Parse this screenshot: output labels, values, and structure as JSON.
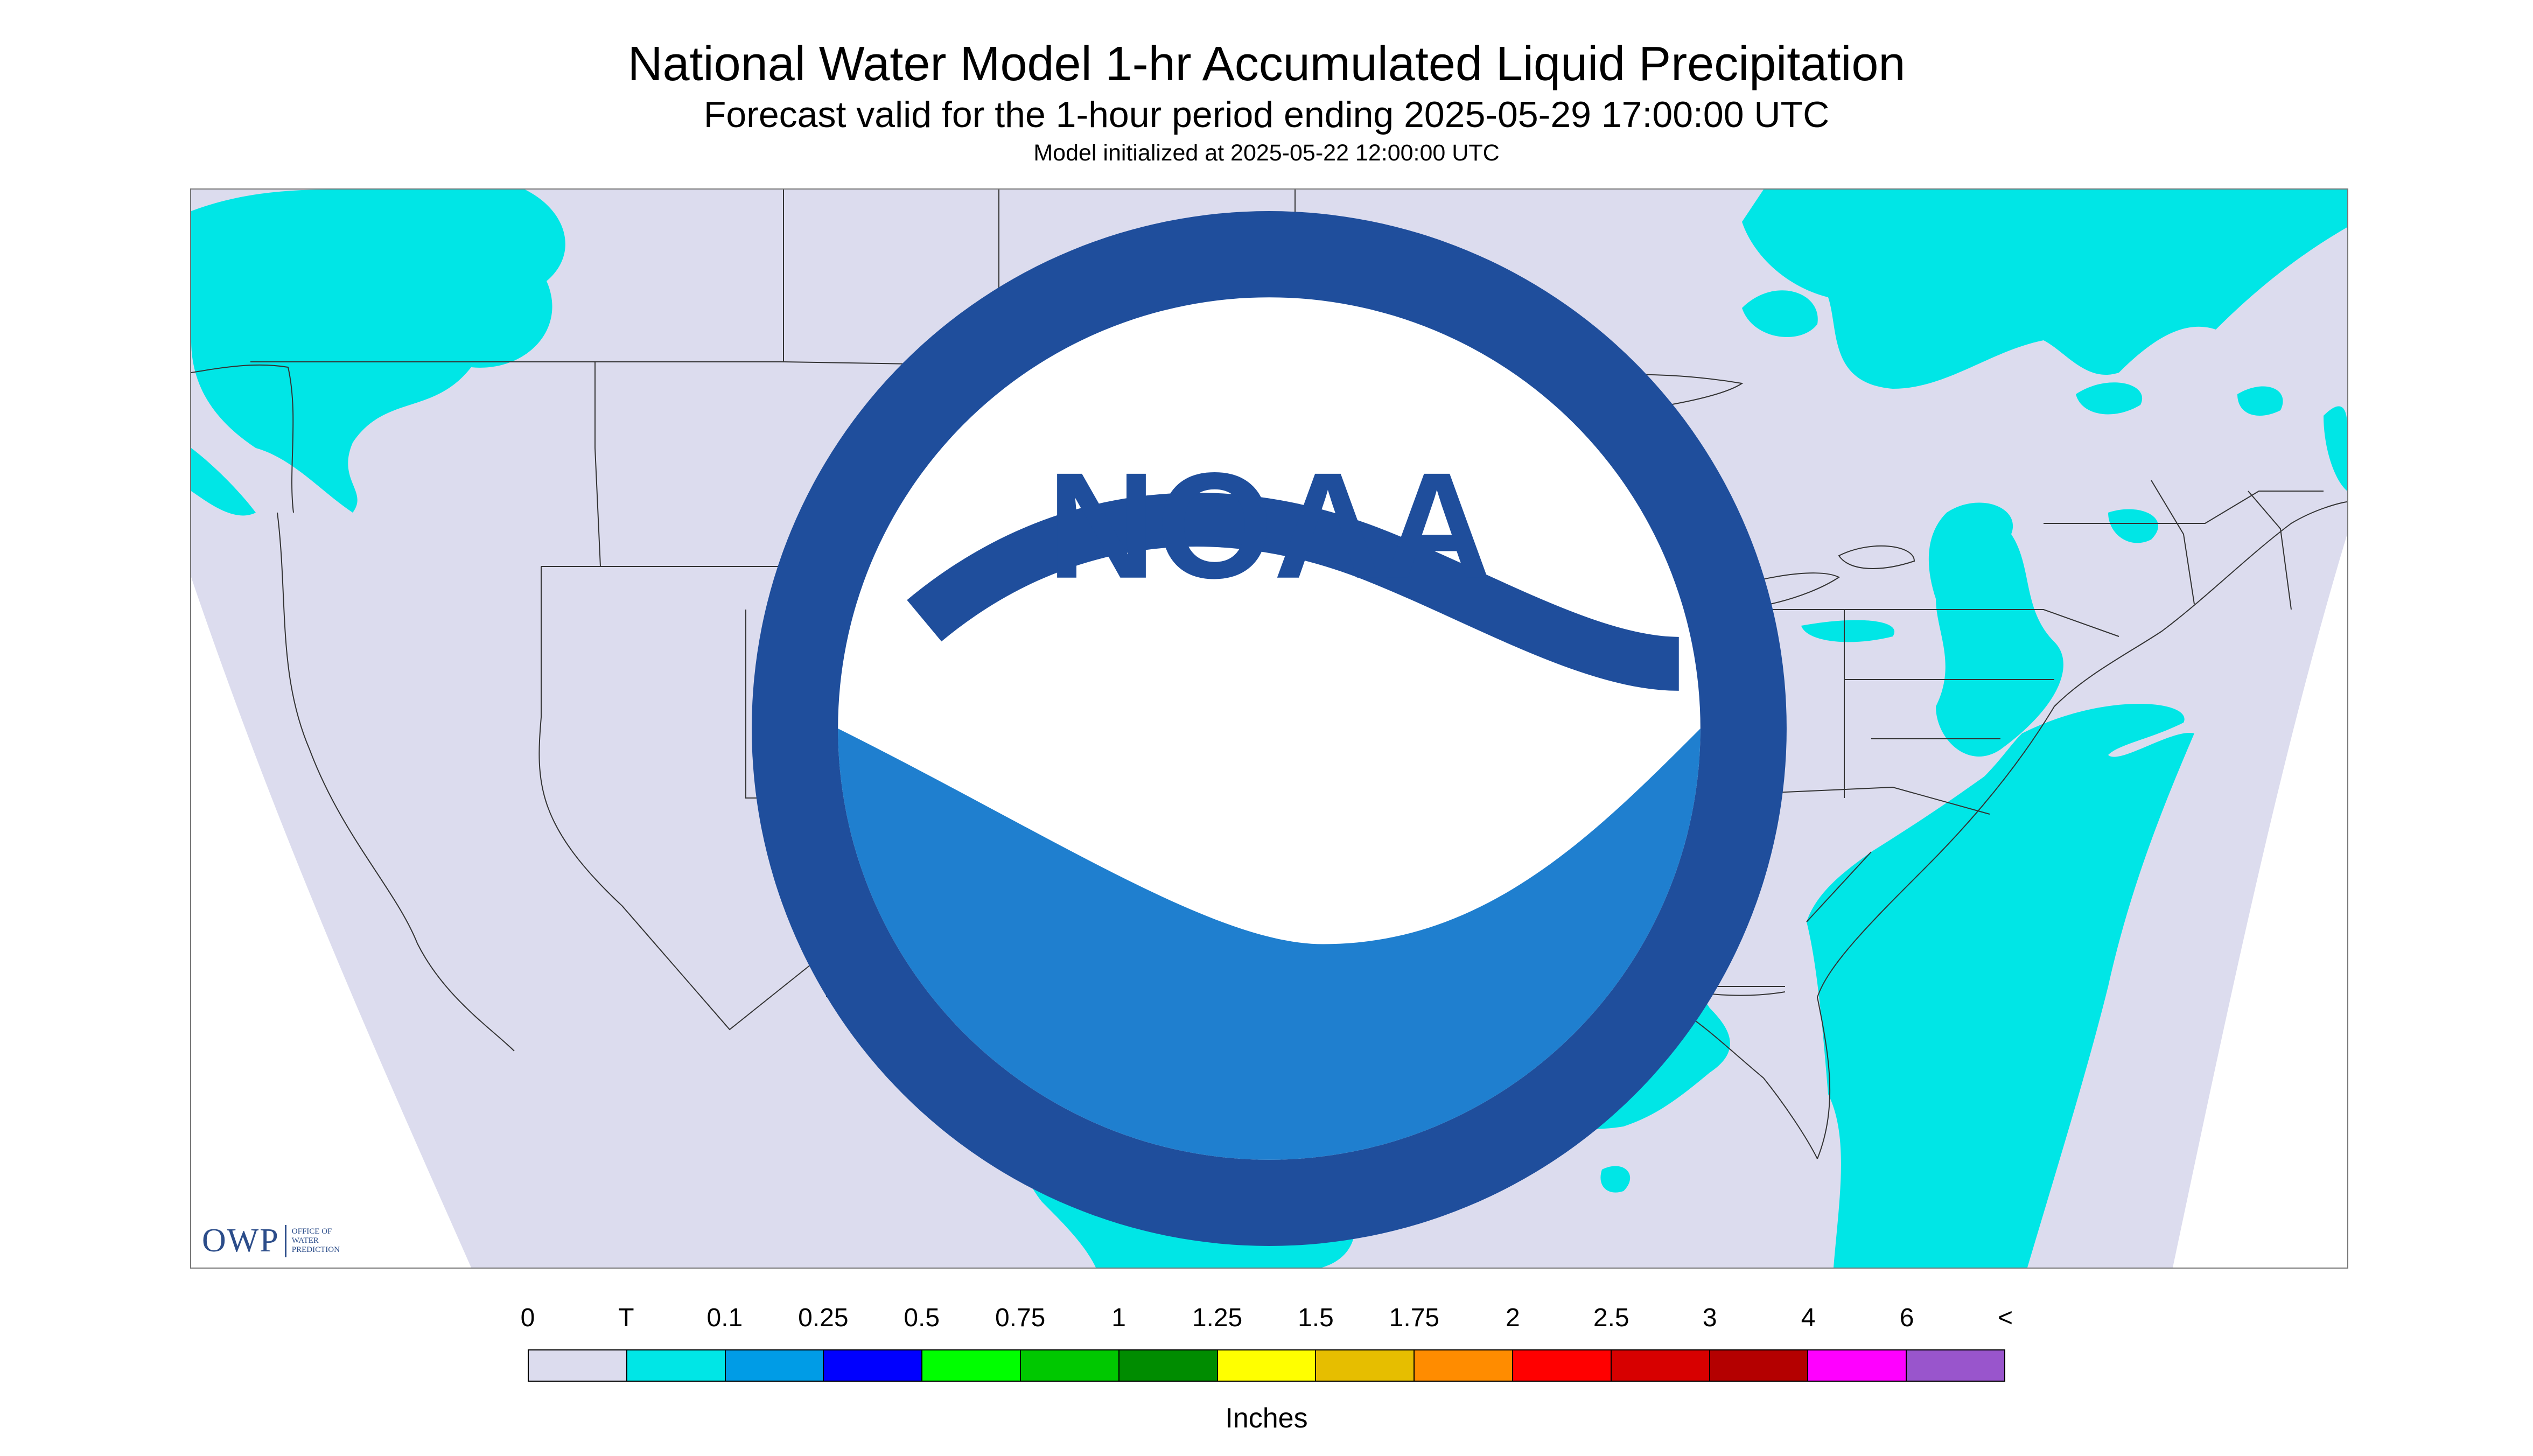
{
  "title": "National Water Model 1-hr Accumulated Liquid Precipitation",
  "subtitle": "Forecast valid for the 1-hour period ending 2025-05-29 17:00:00 UTC",
  "init": "Model initialized at 2025-05-22 12:00:00 UTC",
  "logo_owp": {
    "mark": "OWP",
    "line1": "OFFICE OF",
    "line2": "WATER",
    "line3": "PREDICTION"
  },
  "logo_noaa": {
    "text": "NOAA"
  },
  "colors": {
    "no_precip": "#dcdcee",
    "trace": "#00e6e6",
    "outside": "#ffffff",
    "border": "#333333"
  },
  "legend": {
    "labels": [
      "0",
      "T",
      "0.1",
      "0.25",
      "0.5",
      "0.75",
      "1",
      "1.25",
      "1.5",
      "1.75",
      "2",
      "2.5",
      "3",
      "4",
      "6",
      "<"
    ],
    "colors": [
      "#dcdcee",
      "#00e6e6",
      "#009ce6",
      "#0000ff",
      "#00ff00",
      "#00c800",
      "#008c00",
      "#ffff00",
      "#e6be00",
      "#ff8c00",
      "#ff0000",
      "#d70000",
      "#b40000",
      "#ff00ff",
      "#9955cc"
    ],
    "unit": "Inches"
  }
}
